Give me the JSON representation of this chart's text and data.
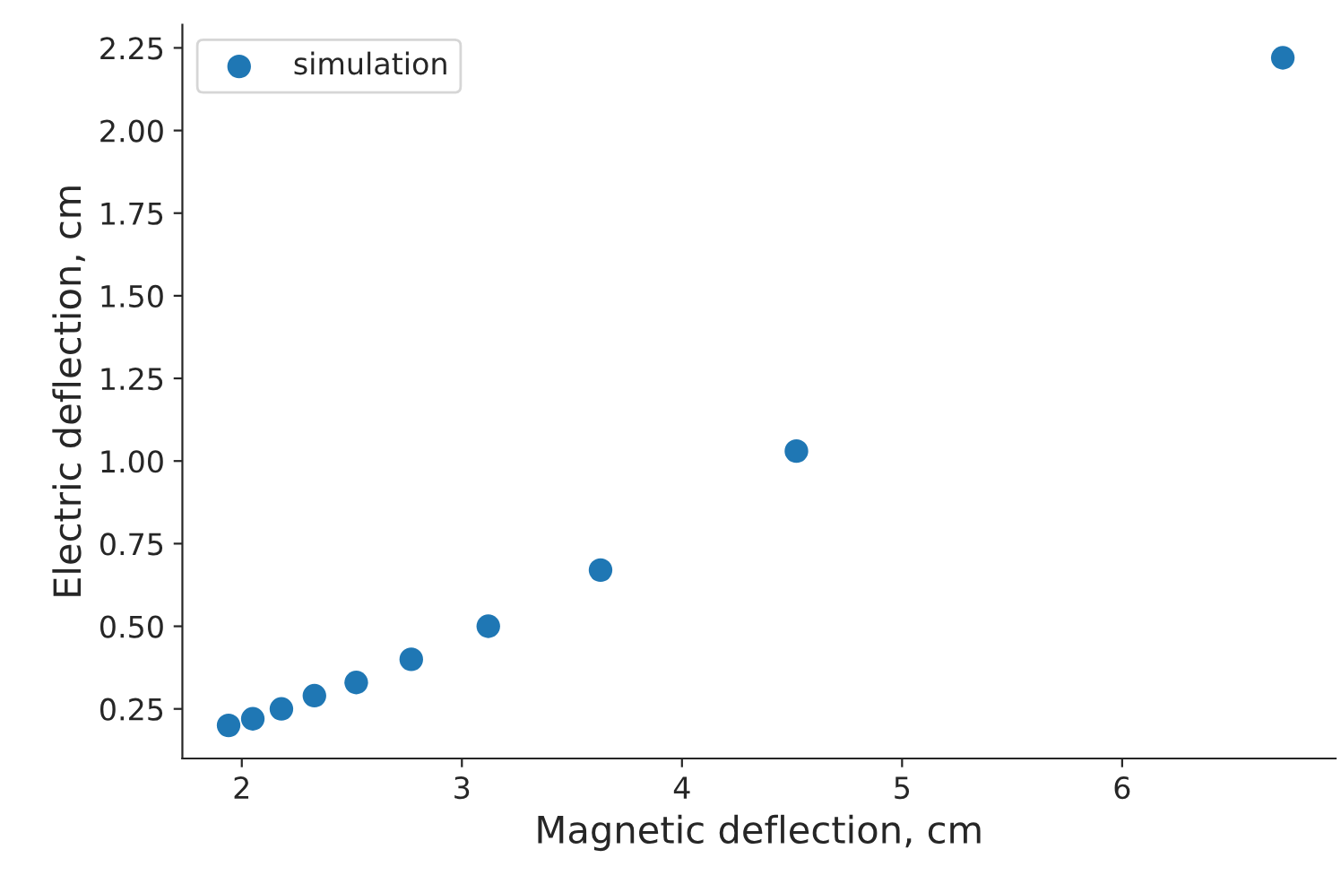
{
  "chart_data": {
    "type": "scatter",
    "xlabel": "Magnetic deflection, cm",
    "ylabel": "Electric deflection, cm",
    "series": [
      {
        "name": "simulation",
        "color": "#1f77b4",
        "x": [
          1.94,
          2.05,
          2.18,
          2.33,
          2.52,
          2.77,
          3.12,
          3.63,
          4.52,
          6.73
        ],
        "values": [
          0.2,
          0.22,
          0.25,
          0.29,
          0.33,
          0.4,
          0.5,
          0.67,
          1.03,
          2.22
        ]
      }
    ],
    "xlim": [
      1.73,
      6.97
    ],
    "ylim": [
      0.1,
      2.32
    ],
    "xticks": [
      2,
      3,
      4,
      5,
      6
    ],
    "yticks": [
      {
        "value": 0.25,
        "label": "0.25"
      },
      {
        "value": 0.5,
        "label": "0.50"
      },
      {
        "value": 0.75,
        "label": "0.75"
      },
      {
        "value": 1.0,
        "label": "1.00"
      },
      {
        "value": 1.25,
        "label": "1.25"
      },
      {
        "value": 1.5,
        "label": "1.50"
      },
      {
        "value": 1.75,
        "label": "1.75"
      },
      {
        "value": 2.0,
        "label": "2.00"
      },
      {
        "value": 2.25,
        "label": "2.25"
      }
    ],
    "legend": "top left",
    "marker": "circle",
    "grid": false
  }
}
